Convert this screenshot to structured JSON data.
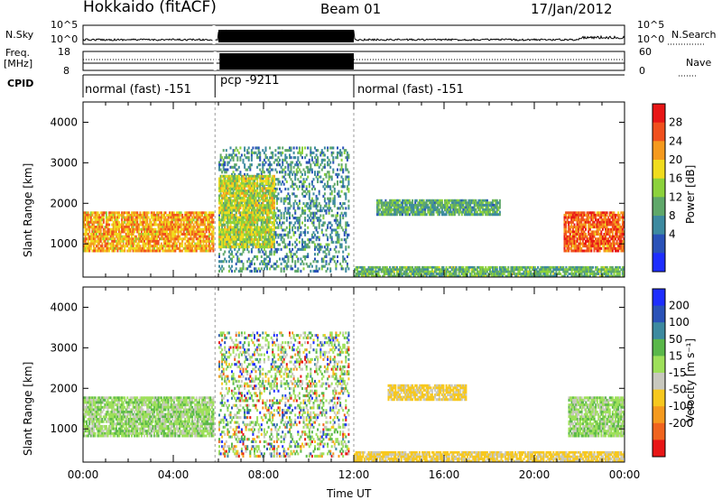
{
  "header": {
    "radar": "Hokkaido (fitACF)",
    "beam": "Beam 01",
    "date": "17/Jan/2012"
  },
  "strip": {
    "nsky_label": "N.Sky",
    "nsearch_label": "N.Search",
    "noise_ticks": [
      "10^5",
      "10^0"
    ],
    "freq_label_1": "Freq.",
    "freq_label_2": "[MHz]",
    "freq_ticks": [
      "18",
      "8"
    ],
    "nave_label": "Nave",
    "nave_ticks": [
      "60",
      "0"
    ],
    "cpid_label": "CPID",
    "cpid_segments": [
      {
        "label": "normal (fast) -151",
        "start_h": 0.0,
        "end_h": 5.85
      },
      {
        "label": "pcp -9211",
        "start_h": 5.85,
        "end_h": 12.0
      },
      {
        "label": "normal (fast) -151",
        "start_h": 12.0,
        "end_h": 24.0
      }
    ]
  },
  "colors": {
    "power_scale": [
      "#1e2eff",
      "#2a52b8",
      "#3d8aa0",
      "#5fa86a",
      "#8cd23c",
      "#f0dc1e",
      "#f59a1e",
      "#f0501e",
      "#e81616"
    ],
    "velocity_scale": [
      "#1e2eff",
      "#2a52b8",
      "#3d8aa0",
      "#5ab84a",
      "#9ee05a",
      "#c8c8be",
      "#f7c81e",
      "#f59a1e",
      "#f0641e",
      "#e81616"
    ]
  },
  "chart_data": [
    {
      "type": "heatmap",
      "panel": "power",
      "ylabel": "Slant Range [km]",
      "ylim": [
        180,
        4500
      ],
      "yticks": [
        "4000",
        "3000",
        "2000",
        "1000"
      ],
      "xlim": [
        0,
        24
      ],
      "colorbar_label": "Power [dB]",
      "colorbar_ticks": [
        "28",
        "24",
        "20",
        "16",
        "12",
        "8",
        "4"
      ],
      "regions": [
        {
          "t0": 0.0,
          "t1": 5.8,
          "r0": 800,
          "r1": 1800,
          "level": 0.72
        },
        {
          "t0": 6.0,
          "t1": 11.8,
          "r0": 300,
          "r1": 3400,
          "level": 0.3
        },
        {
          "t0": 6.0,
          "t1": 8.5,
          "r0": 900,
          "r1": 2700,
          "level": 0.55
        },
        {
          "t0": 13.0,
          "t1": 18.5,
          "r0": 1700,
          "r1": 2100,
          "level": 0.35
        },
        {
          "t0": 21.3,
          "t1": 24.0,
          "r0": 800,
          "r1": 1800,
          "level": 0.85
        },
        {
          "t0": 12.0,
          "t1": 24.0,
          "r0": 180,
          "r1": 450,
          "level": 0.4
        }
      ]
    },
    {
      "type": "heatmap",
      "panel": "velocity",
      "ylabel": "Slant Range [km]",
      "ylim": [
        180,
        4500
      ],
      "yticks": [
        "4000",
        "3000",
        "2000",
        "1000"
      ],
      "xlim": [
        0,
        24
      ],
      "xlabel": "Time UT",
      "xticks": [
        "00:00",
        "04:00",
        "08:00",
        "12:00",
        "16:00",
        "20:00",
        "00:00"
      ],
      "colorbar_label": "Velocity [m s⁻¹]",
      "colorbar_ticks": [
        "200",
        "100",
        "50",
        "15",
        "-15",
        "-50",
        "-100",
        "-200"
      ],
      "regions": [
        {
          "t0": 0.0,
          "t1": 5.8,
          "r0": 800,
          "r1": 1800,
          "velocity": 0
        },
        {
          "t0": 6.0,
          "t1": 11.8,
          "r0": 300,
          "r1": 3400,
          "velocity": 0
        },
        {
          "t0": 13.5,
          "t1": 17.0,
          "r0": 1700,
          "r1": 2100,
          "velocity": -60
        },
        {
          "t0": 21.5,
          "t1": 24.0,
          "r0": 800,
          "r1": 1800,
          "velocity": 0
        },
        {
          "t0": 12.0,
          "t1": 24.0,
          "r0": 180,
          "r1": 450,
          "velocity": -60
        }
      ]
    }
  ]
}
